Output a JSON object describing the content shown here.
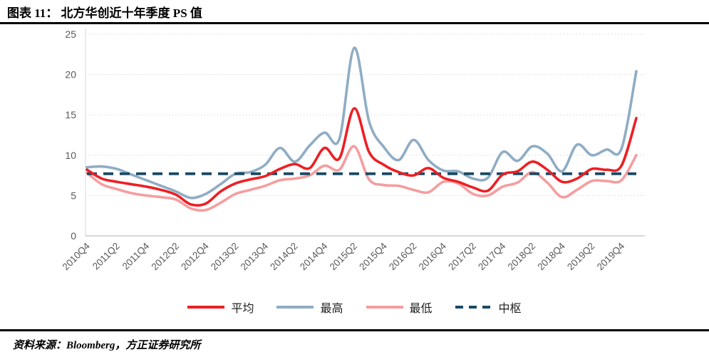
{
  "header": {
    "title": "图表 11：  北方华创近十年季度 PS 值"
  },
  "footer": {
    "source": "资料来源：Bloomberg，方正证券研究所"
  },
  "axis": {
    "tick_color": "#595959",
    "grid_color": "#d9d9d9",
    "baseline_color": "#bfbfbf"
  },
  "chart_data": {
    "type": "line",
    "title": "北方华创近十年季度 PS 值",
    "xlabel": "",
    "ylabel": "",
    "ylim": [
      0,
      25
    ],
    "yticks": [
      0,
      5,
      10,
      15,
      20,
      25
    ],
    "grid": "dotted-horizontal",
    "legend_position": "bottom",
    "x_label_every": 2,
    "categories": [
      "2010Q4",
      "2011Q1",
      "2011Q2",
      "2011Q3",
      "2011Q4",
      "2012Q1",
      "2012Q2",
      "2012Q3",
      "2012Q4",
      "2013Q1",
      "2013Q2",
      "2013Q3",
      "2013Q4",
      "2014Q1",
      "2014Q2",
      "2014Q3",
      "2014Q4",
      "2015Q1",
      "2015Q2",
      "2015Q3",
      "2015Q4",
      "2016Q1",
      "2016Q2",
      "2016Q3",
      "2016Q4",
      "2017Q1",
      "2017Q2",
      "2017Q3",
      "2017Q4",
      "2018Q1",
      "2018Q2",
      "2018Q3",
      "2018Q4",
      "2019Q1",
      "2019Q2",
      "2019Q3",
      "2019Q4",
      "2020Q1"
    ],
    "series": [
      {
        "name": "平均",
        "color": "#ed1f24",
        "style": "solid",
        "z": 4,
        "values": [
          8.2,
          7.1,
          6.7,
          6.4,
          6.1,
          5.7,
          5.1,
          3.9,
          4.0,
          5.5,
          6.5,
          7.0,
          7.4,
          8.3,
          8.9,
          8.4,
          10.9,
          9.6,
          15.8,
          10.4,
          8.8,
          7.9,
          7.5,
          8.4,
          7.2,
          6.7,
          6.0,
          5.6,
          7.6,
          8.0,
          9.2,
          8.2,
          6.7,
          7.1,
          8.3,
          8.2,
          8.7,
          14.6
        ]
      },
      {
        "name": "最高",
        "color": "#8fadc4",
        "style": "solid",
        "z": 1,
        "values": [
          8.5,
          8.6,
          8.3,
          7.6,
          6.9,
          6.2,
          5.5,
          4.7,
          5.2,
          6.4,
          7.7,
          7.9,
          8.8,
          10.9,
          9.2,
          11.2,
          12.8,
          12.0,
          23.3,
          14.2,
          11.0,
          9.4,
          11.9,
          9.4,
          8.1,
          8.0,
          7.1,
          7.2,
          10.4,
          9.3,
          11.1,
          10.2,
          8.0,
          11.3,
          10.0,
          10.7,
          10.8,
          20.4
        ]
      },
      {
        "name": "最低",
        "color": "#f59d9f",
        "style": "solid",
        "z": 2,
        "values": [
          7.8,
          6.4,
          5.8,
          5.3,
          5.0,
          4.8,
          4.5,
          3.4,
          3.2,
          4.1,
          5.2,
          5.7,
          6.2,
          6.9,
          7.1,
          7.5,
          8.7,
          8.2,
          11.1,
          7.0,
          6.3,
          6.2,
          5.7,
          5.4,
          6.7,
          6.5,
          5.2,
          5.0,
          6.1,
          6.6,
          7.9,
          6.6,
          4.8,
          5.7,
          6.8,
          6.8,
          6.9,
          10.0
        ]
      },
      {
        "name": "中枢",
        "color": "#1b4a64",
        "style": "dashed",
        "z": 3,
        "kind": "hline",
        "value": 7.7
      }
    ]
  }
}
